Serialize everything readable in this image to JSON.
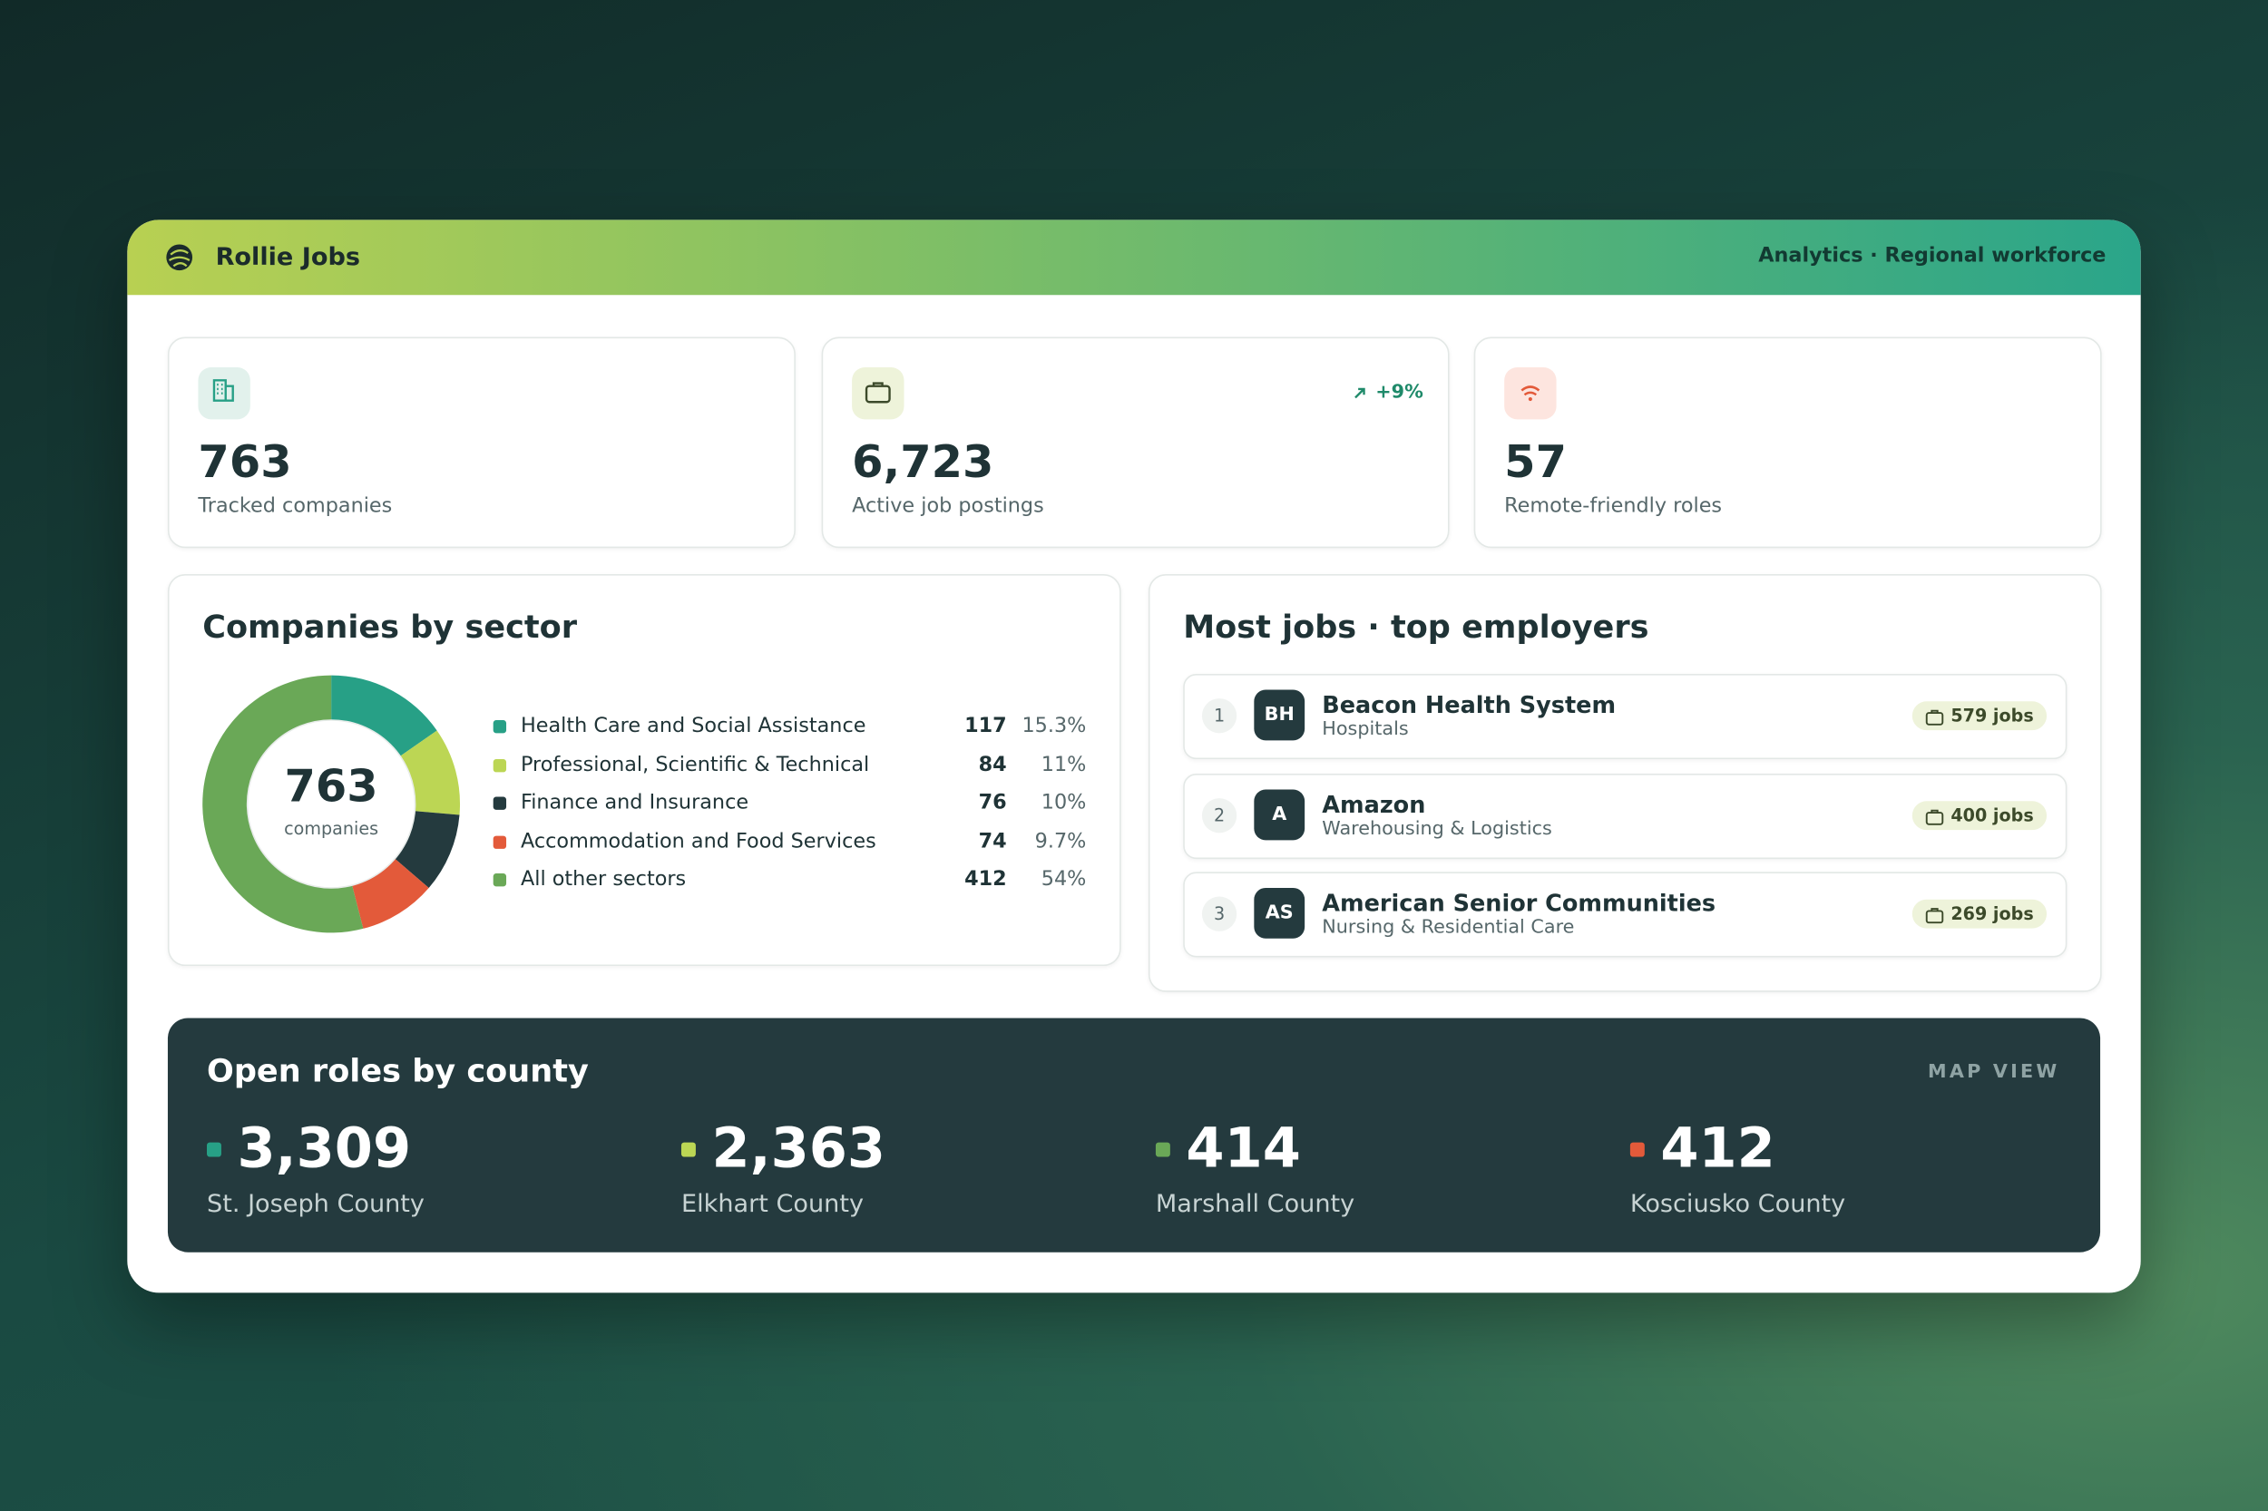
{
  "header": {
    "brand": "Rollie Jobs",
    "context": "Analytics · Regional workforce"
  },
  "kpis": [
    {
      "value": "763",
      "label": "Tracked companies"
    },
    {
      "value": "6,723",
      "label": "Active job postings",
      "trend": "+9%"
    },
    {
      "value": "57",
      "label": "Remote-friendly roles"
    }
  ],
  "sectors": {
    "title": "Companies by sector",
    "center_value": "763",
    "center_label": "companies",
    "items": [
      {
        "name": "Health Care and Social Assistance",
        "count": 117,
        "share": "15.3%",
        "color": "#27a086"
      },
      {
        "name": "Professional, Scientific & Technical",
        "count": 84,
        "share": "11%",
        "color": "#bcd654"
      },
      {
        "name": "Finance and Insurance",
        "count": 76,
        "share": "10%",
        "color": "#243a3e"
      },
      {
        "name": "Accommodation and Food Services",
        "count": 74,
        "share": "9.7%",
        "color": "#e35a3a"
      },
      {
        "name": "All other sectors",
        "count": 412,
        "share": "54%",
        "color": "#6aa857"
      }
    ]
  },
  "employers": {
    "title": "Most jobs · top employers",
    "rows": [
      {
        "rank": "1",
        "initials": "BH",
        "name": "Beacon Health System",
        "category": "Hospitals",
        "jobs": "579 jobs"
      },
      {
        "rank": "2",
        "initials": "A",
        "name": "Amazon",
        "category": "Warehousing & Logistics",
        "jobs": "400 jobs"
      },
      {
        "rank": "3",
        "initials": "AS",
        "name": "American Senior Communities",
        "category": "Nursing & Residential Care",
        "jobs": "269 jobs"
      }
    ]
  },
  "counties": {
    "title": "Open roles by county",
    "action": "MAP VIEW",
    "items": [
      {
        "value": "3,309",
        "name": "St. Joseph County",
        "color": "#27a086"
      },
      {
        "value": "2,363",
        "name": "Elkhart County",
        "color": "#bcd654"
      },
      {
        "value": "414",
        "name": "Marshall County",
        "color": "#6aa857"
      },
      {
        "value": "412",
        "name": "Kosciusko County",
        "color": "#e35a3a"
      }
    ]
  }
}
